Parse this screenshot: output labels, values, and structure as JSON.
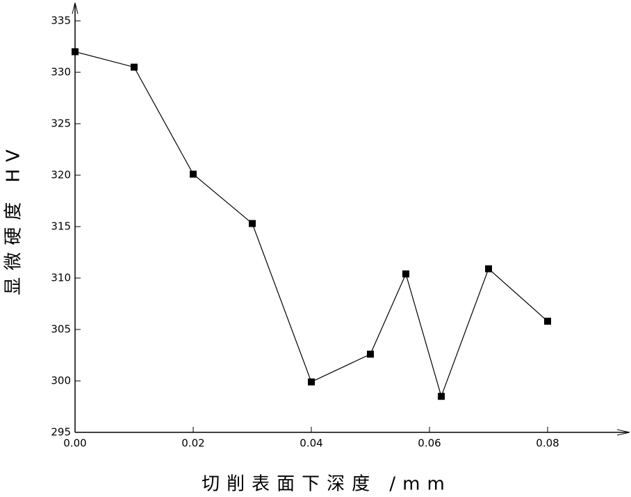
{
  "chart_data": {
    "type": "line",
    "x_label": "切削表面下深度 /mm",
    "y_label": "显微硬度 HV",
    "series": [
      {
        "name": "HV",
        "color": "#000000",
        "x": [
          0,
          0.01,
          0.02,
          0.03,
          0.04,
          0.05,
          0.056,
          0.062,
          0.07,
          0.08
        ],
        "values": [
          332.0,
          330.5,
          320.1,
          315.3,
          299.9,
          302.6,
          310.4,
          298.5,
          310.9,
          305.8
        ]
      }
    ],
    "xlim": [
      0,
      0.094
    ],
    "ylim": [
      295,
      336.5
    ],
    "xticks": [
      {
        "value": 0,
        "label": "0.00"
      },
      {
        "value": 0.02,
        "label": "0.02"
      },
      {
        "value": 0.04,
        "label": "0.04"
      },
      {
        "value": 0.06,
        "label": "0.06"
      },
      {
        "value": 0.08,
        "label": "0.08"
      }
    ],
    "yticks": [
      295,
      300,
      305,
      310,
      315,
      320,
      325,
      330,
      335
    ],
    "grid": false
  }
}
